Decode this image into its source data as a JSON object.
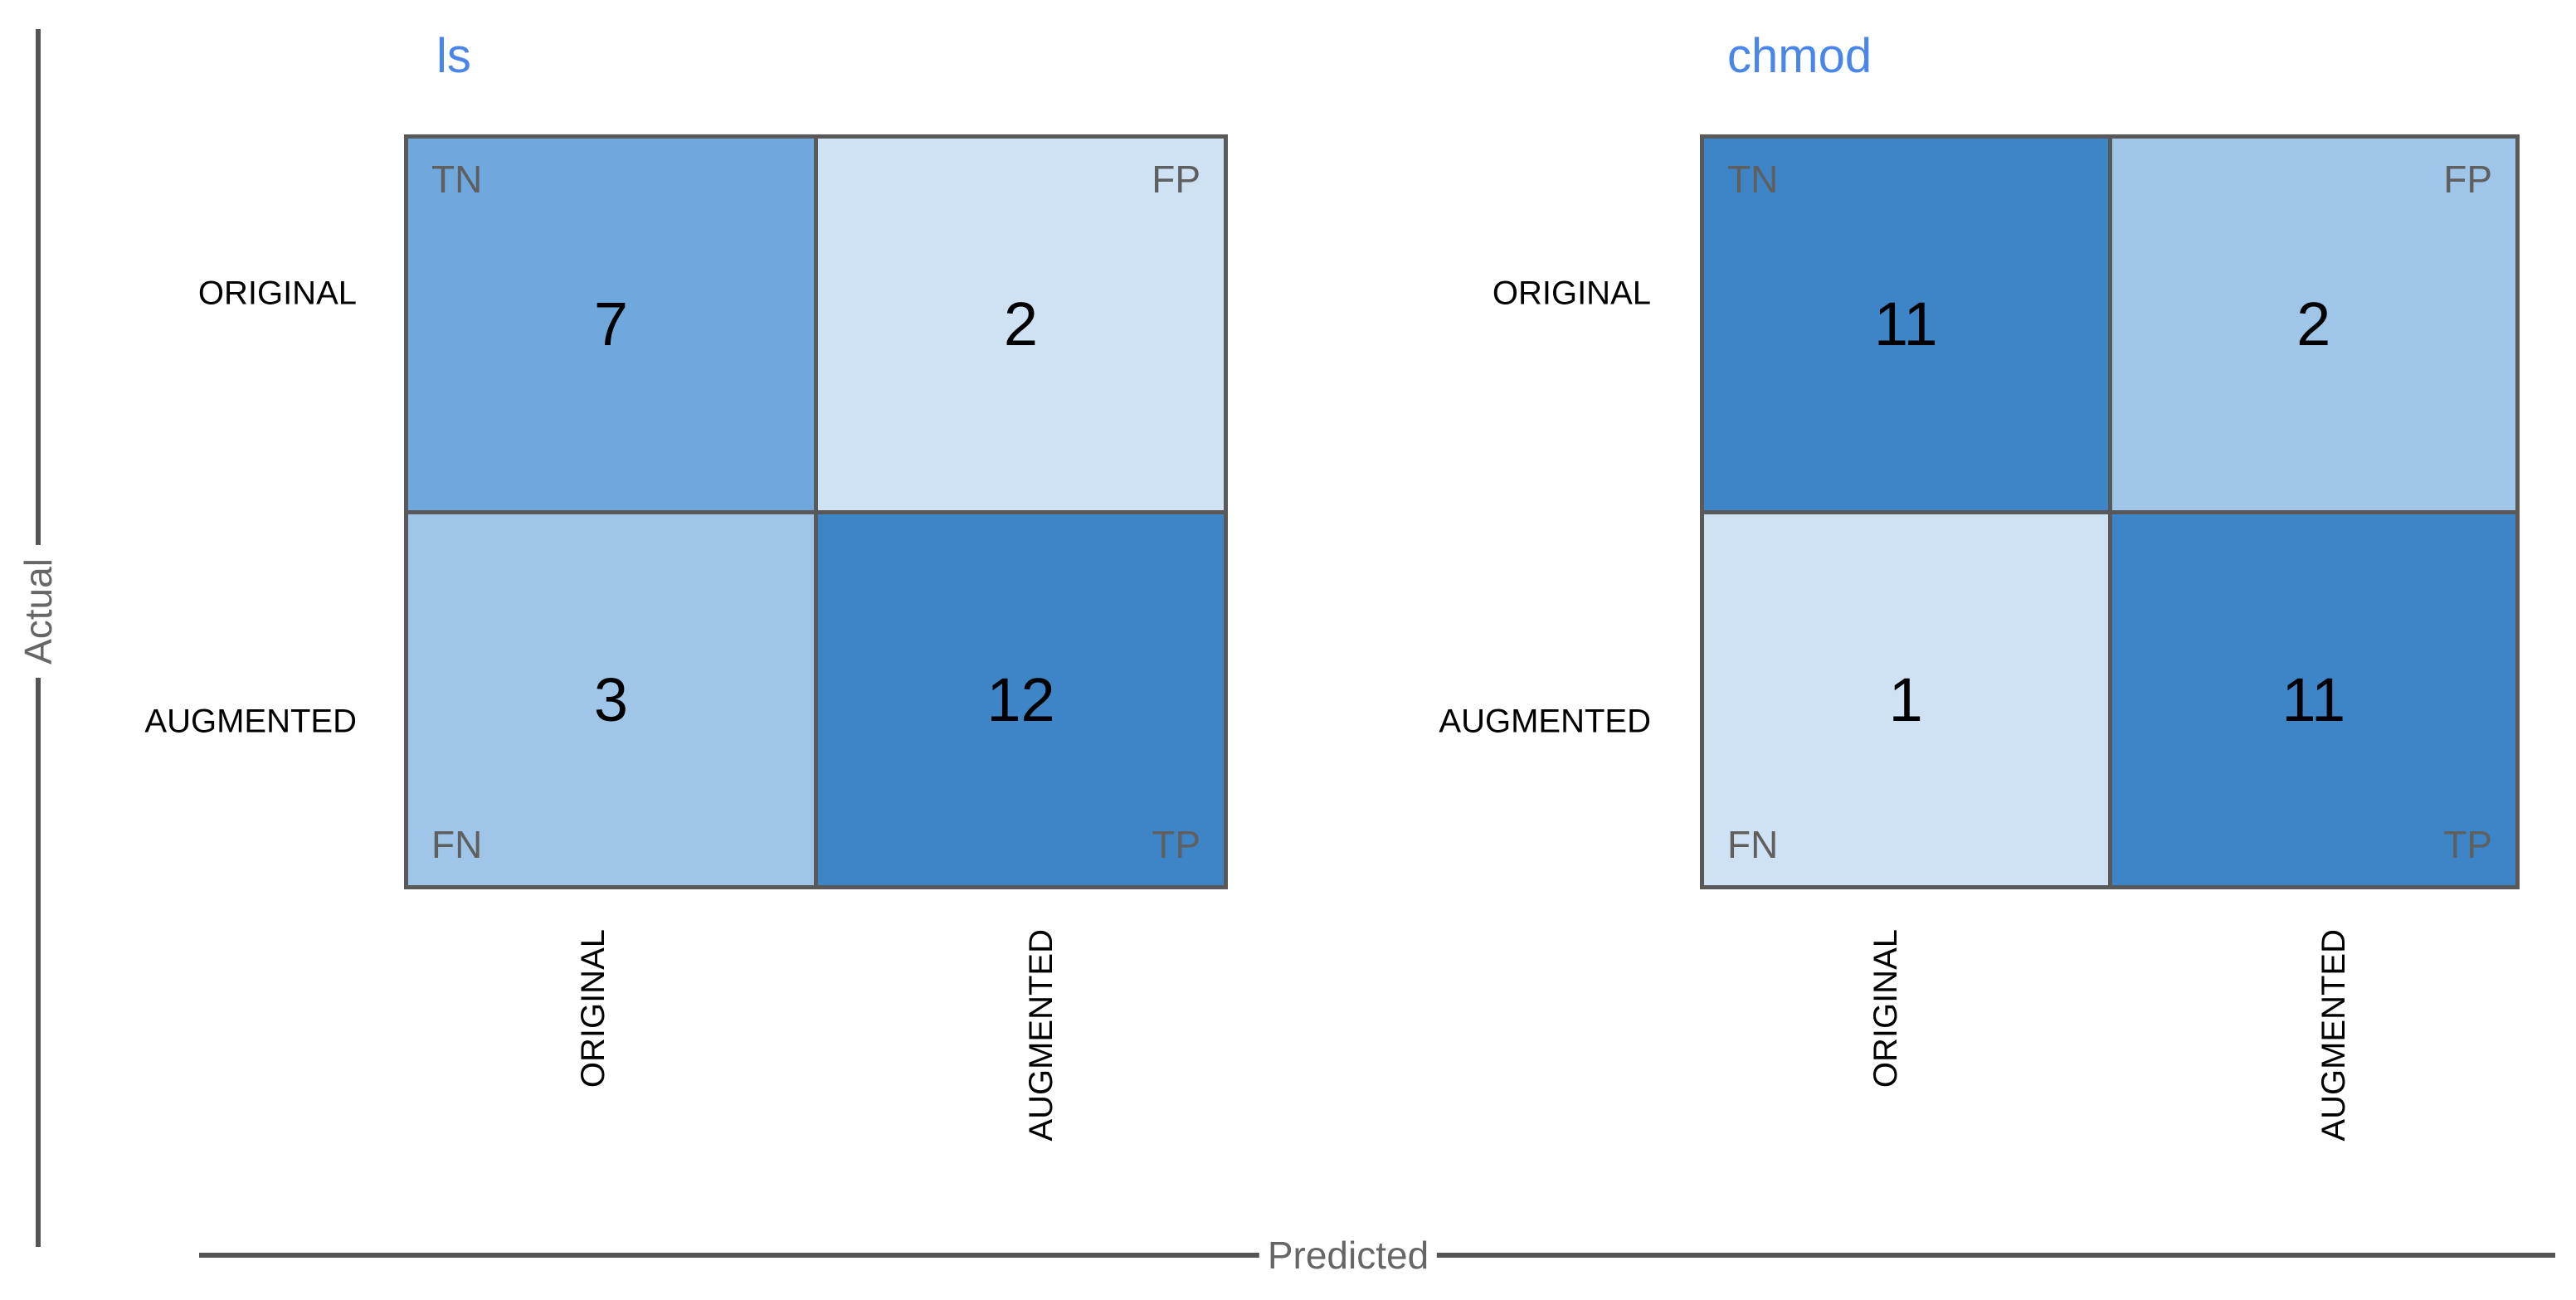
{
  "figure": {
    "background": "#ffffff",
    "y_axis_title": "Actual",
    "x_axis_title": "Predicted",
    "axis_line_color": "#555555",
    "axis_title_color": "#666666",
    "grid_line_color": "#595959",
    "chart_title_color": "#4a86e8",
    "corner_label_color": "#5f5f5f",
    "value_color": "#000000",
    "tick_label_color": "#000000"
  },
  "chart_data": [
    {
      "type": "heatmap",
      "title": "ls",
      "xlabel": "Predicted",
      "ylabel": "Actual",
      "x_categories": [
        "ORIGINAL",
        "AUGMENTED"
      ],
      "y_categories": [
        "ORIGINAL",
        "AUGMENTED"
      ],
      "values": [
        [
          7,
          2
        ],
        [
          3,
          12
        ]
      ],
      "corner_labels": [
        [
          "TN",
          "FP"
        ],
        [
          "FN",
          "TP"
        ]
      ],
      "cell_colors": [
        [
          "#6fa8dc",
          "#cfe2f3"
        ],
        [
          "#9fc5e8",
          "#3d85c6"
        ]
      ],
      "legend": "none",
      "grid": "on"
    },
    {
      "type": "heatmap",
      "title": "chmod",
      "xlabel": "Predicted",
      "ylabel": "Actual",
      "x_categories": [
        "ORIGINAL",
        "AUGMENTED"
      ],
      "y_categories": [
        "ORIGINAL",
        "AUGMENTED"
      ],
      "values": [
        [
          11,
          2
        ],
        [
          1,
          11
        ]
      ],
      "corner_labels": [
        [
          "TN",
          "FP"
        ],
        [
          "FN",
          "TP"
        ]
      ],
      "cell_colors": [
        [
          "#3d85c6",
          "#9fc5e8"
        ],
        [
          "#cfe2f3",
          "#3d85c6"
        ]
      ],
      "legend": "none",
      "grid": "on"
    }
  ]
}
